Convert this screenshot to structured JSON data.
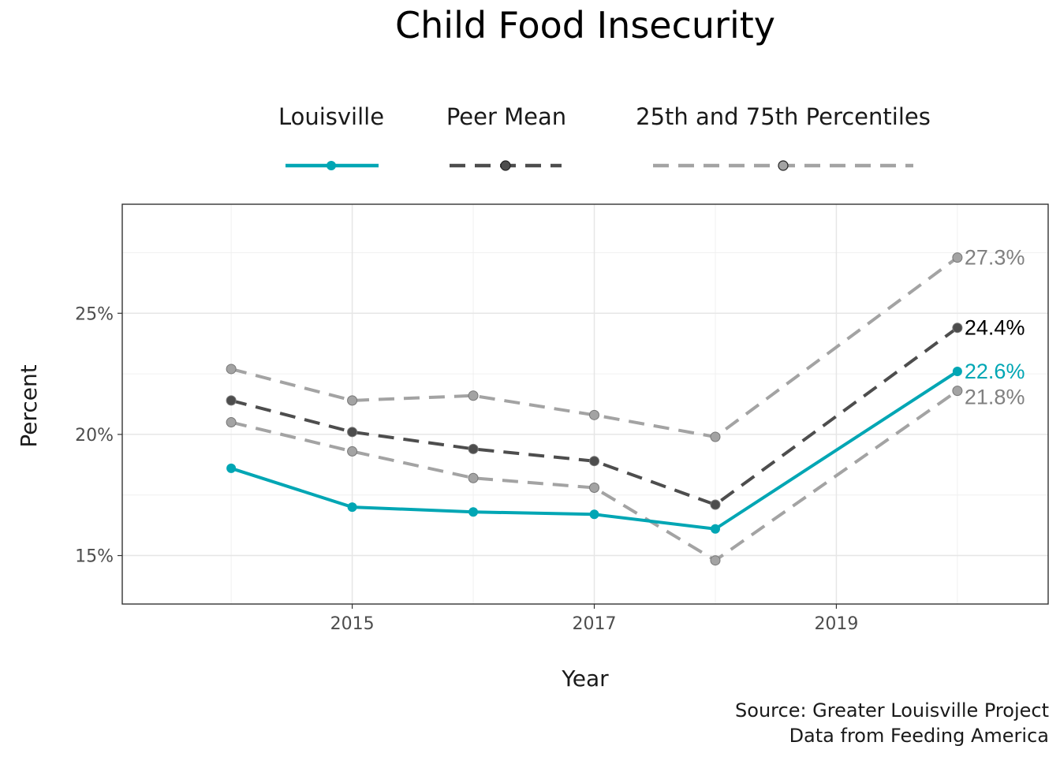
{
  "chart_data": {
    "type": "line",
    "title": "Child Food Insecurity",
    "xlabel": "Year",
    "ylabel": "Percent",
    "x": [
      2014,
      2015,
      2016,
      2017,
      2018,
      2020
    ],
    "xlim": [
      2013.1,
      2020.75
    ],
    "ylim": [
      13.0,
      29.5
    ],
    "x_ticks": [
      2015,
      2017,
      2019
    ],
    "x_tick_labels": [
      "2015",
      "2017",
      "2019"
    ],
    "y_ticks": [
      15,
      20,
      25
    ],
    "y_tick_labels": [
      "15%",
      "20%",
      "25%"
    ],
    "grid": true,
    "legend_position": "top",
    "legend": [
      {
        "label": "Louisville",
        "color": "#00a6b4",
        "style": "solid"
      },
      {
        "label": "Peer Mean",
        "color": "#4d4d4d",
        "style": "dashed"
      },
      {
        "label": "25th and 75th Percentiles",
        "color": "#a3a3a3",
        "style": "dashed"
      }
    ],
    "series": [
      {
        "key": "louisville",
        "values": [
          18.6,
          17.0,
          16.8,
          16.7,
          16.1,
          22.6
        ],
        "color": "#00a6b4",
        "dash": "solid",
        "end_label": "22.6%"
      },
      {
        "key": "peer_mean",
        "values": [
          21.4,
          20.1,
          19.4,
          18.9,
          17.1,
          24.4
        ],
        "color": "#4d4d4d",
        "dash": "dashed",
        "end_label": "24.4%"
      },
      {
        "key": "p75",
        "values": [
          22.7,
          21.4,
          21.6,
          20.8,
          19.9,
          27.3
        ],
        "color": "#a3a3a3",
        "dash": "dashed",
        "end_label": "27.3%"
      },
      {
        "key": "p25",
        "values": [
          20.5,
          19.3,
          18.2,
          17.8,
          14.8,
          21.8
        ],
        "color": "#a3a3a3",
        "dash": "dashed",
        "end_label": "21.8%"
      }
    ],
    "end_label_colors": {
      "louisville": "#00a6b4",
      "peer_mean": "#000000",
      "p75": "#808080",
      "p25": "#808080"
    },
    "caption": [
      "Source: Greater Louisville Project",
      "Data from Feeding America"
    ]
  }
}
